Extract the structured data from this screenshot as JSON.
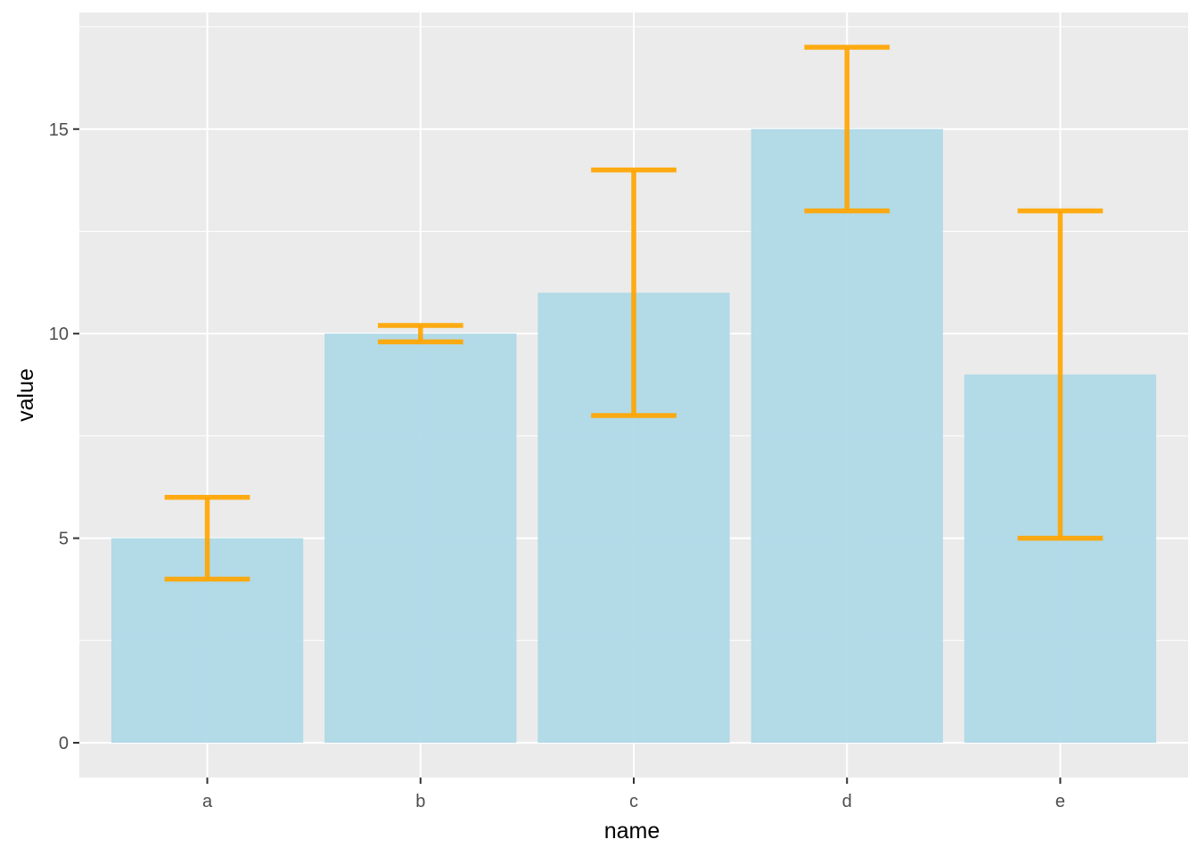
{
  "chart_data": {
    "type": "bar",
    "title": "",
    "xlabel": "name",
    "ylabel": "value",
    "categories": [
      "a",
      "b",
      "c",
      "d",
      "e"
    ],
    "values": [
      5,
      10,
      11,
      15,
      9
    ],
    "error_low": [
      4,
      9.8,
      8,
      13,
      5
    ],
    "error_high": [
      6,
      10.2,
      14,
      17,
      13
    ],
    "ylim": [
      -0.85,
      17.85
    ],
    "yticks": [
      0,
      5,
      10,
      15
    ],
    "ytick_labels": [
      "0",
      "5",
      "10",
      "15"
    ],
    "grid": true,
    "legend": "none",
    "colors": {
      "bar": "#add8e6",
      "errorbar": "#ffa500",
      "panel": "#ebebeb",
      "grid": "#ffffff"
    }
  }
}
